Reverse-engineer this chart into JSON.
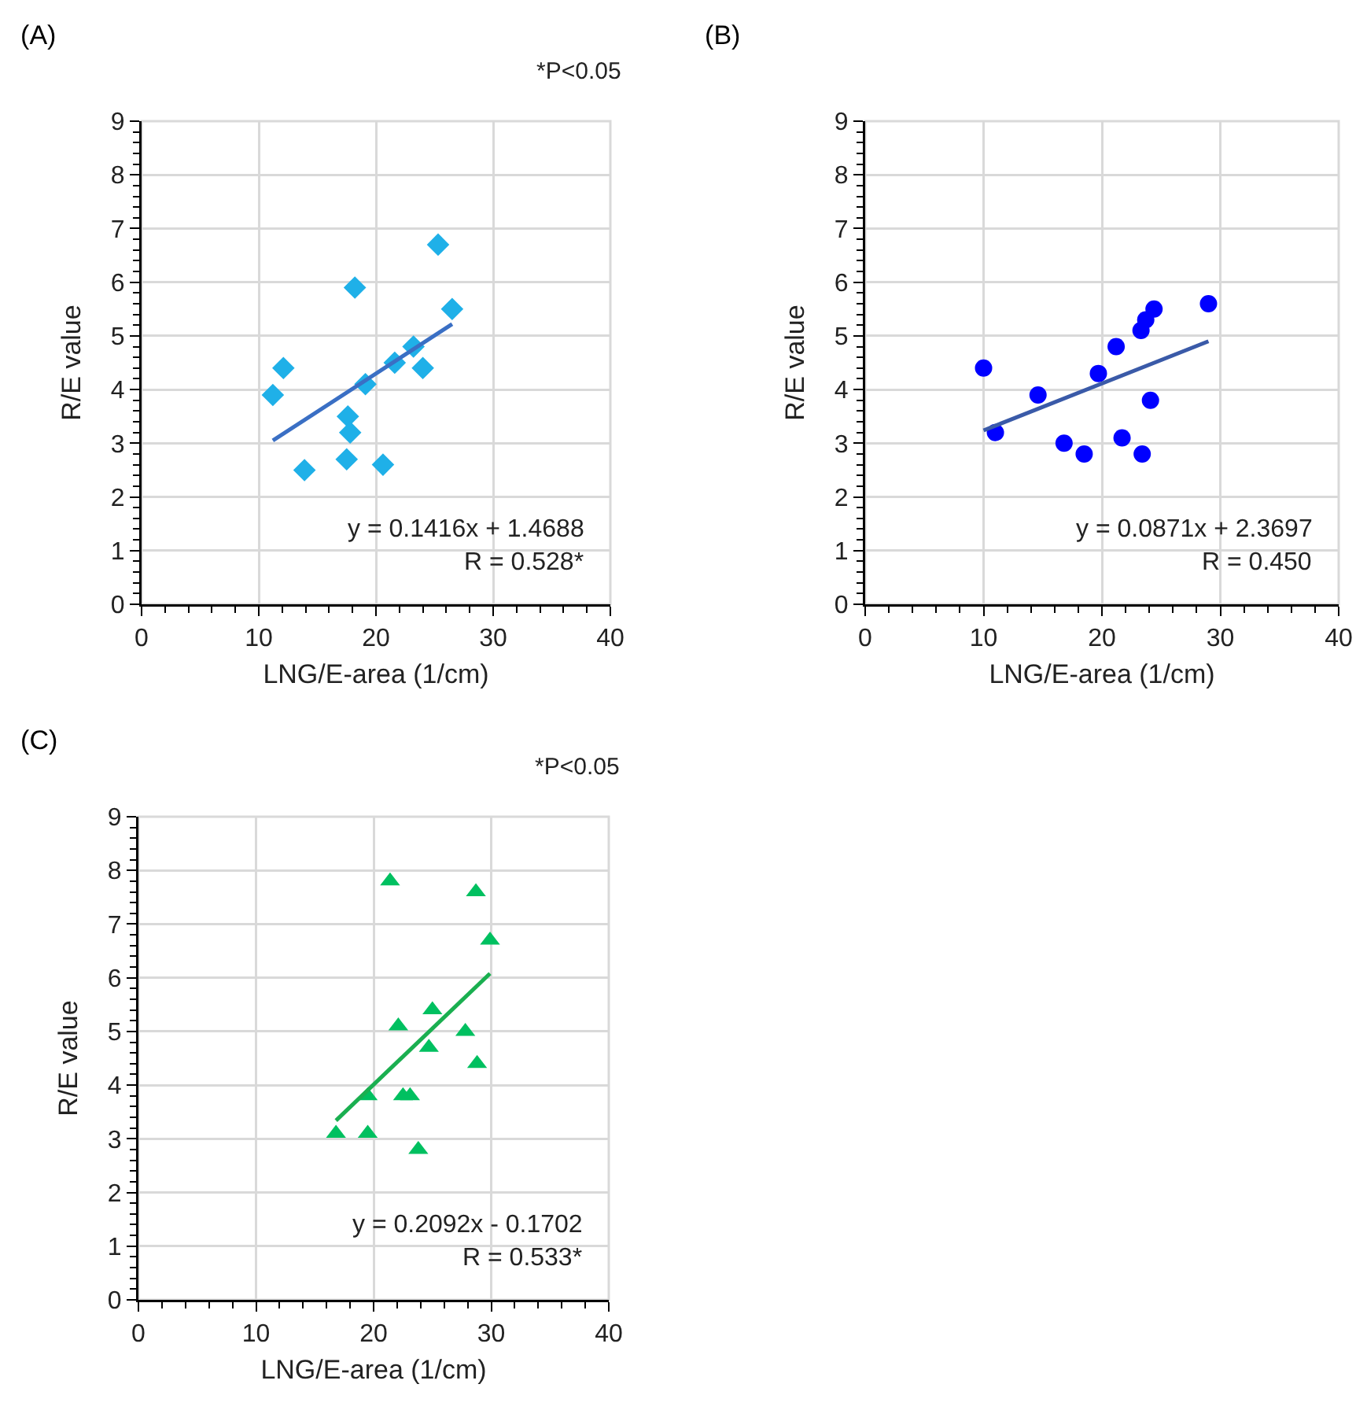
{
  "chart_data": [
    {
      "type": "scatter",
      "title": "(A)",
      "xlabel": "LNG/E-area (1/cm)",
      "ylabel": "R/E value",
      "grid": true,
      "legend": false,
      "xlim": [
        0,
        40
      ],
      "xticks": [
        0,
        10,
        20,
        30,
        40
      ],
      "ylim": [
        0,
        9
      ],
      "yticks": [
        0,
        1,
        2,
        3,
        4,
        5,
        6,
        7,
        8,
        9
      ],
      "annotations": [
        "*P<0.05",
        "y = 0.1416x + 1.4688",
        "R = 0.528*"
      ],
      "series": [
        {
          "marker": "diamond",
          "color": "#1fb0e8",
          "x": [
            11.2,
            12.1,
            13.9,
            17.6,
            17.8,
            17.5,
            18.2,
            19.1,
            20.6,
            21.6,
            23.2,
            24.0,
            25.3,
            26.5
          ],
          "values": [
            3.9,
            4.4,
            2.5,
            3.5,
            3.2,
            2.7,
            5.9,
            4.1,
            2.6,
            4.5,
            4.8,
            4.4,
            6.7,
            5.5
          ]
        },
        {
          "type": "line",
          "marker": "none",
          "color": "#3a6fc4",
          "x": [
            11.2,
            26.5
          ],
          "values": [
            3.05,
            5.22
          ]
        }
      ]
    },
    {
      "type": "scatter",
      "title": "(B)",
      "xlabel": "LNG/E-area (1/cm)",
      "ylabel": "R/E value",
      "grid": true,
      "legend": false,
      "xlim": [
        0,
        40
      ],
      "xticks": [
        0,
        10,
        20,
        30,
        40
      ],
      "ylim": [
        0,
        9
      ],
      "yticks": [
        0,
        1,
        2,
        3,
        4,
        5,
        6,
        7,
        8,
        9
      ],
      "annotations": [
        "y = 0.0871x + 2.3697",
        "R = 0.450"
      ],
      "series": [
        {
          "marker": "circle",
          "color": "#0000ff",
          "x": [
            10.0,
            11.0,
            14.6,
            16.8,
            18.5,
            19.7,
            21.2,
            21.7,
            23.3,
            23.7,
            24.4,
            23.4,
            24.1,
            29.0
          ],
          "values": [
            4.4,
            3.2,
            3.9,
            3.0,
            2.8,
            4.3,
            4.8,
            3.1,
            5.1,
            5.3,
            5.5,
            2.8,
            3.8,
            5.6
          ]
        },
        {
          "type": "line",
          "marker": "none",
          "color": "#3a5aa8",
          "x": [
            10.0,
            29.0
          ],
          "values": [
            3.24,
            4.9
          ]
        }
      ]
    },
    {
      "type": "scatter",
      "title": "(C)",
      "xlabel": "LNG/E-area (1/cm)",
      "ylabel": "R/E value",
      "grid": true,
      "legend": false,
      "xlim": [
        0,
        40
      ],
      "xticks": [
        0,
        10,
        20,
        30,
        40
      ],
      "ylim": [
        0,
        9
      ],
      "yticks": [
        0,
        1,
        2,
        3,
        4,
        5,
        6,
        7,
        8,
        9
      ],
      "annotations": [
        "*P<0.05",
        "y = 0.2092x - 0.1702",
        "R = 0.533*"
      ],
      "series": [
        {
          "marker": "triangle",
          "color": "#00c060",
          "x": [
            21.4,
            28.7,
            29.9,
            25.0,
            22.1,
            27.8,
            24.7,
            28.8,
            19.5,
            22.5,
            23.1,
            16.8,
            19.5,
            23.8
          ],
          "values": [
            7.8,
            7.6,
            6.7,
            5.4,
            5.1,
            5.0,
            4.7,
            4.4,
            3.8,
            3.8,
            3.8,
            3.1,
            3.1,
            2.8
          ]
        },
        {
          "type": "line",
          "marker": "none",
          "color": "#1aaf50",
          "x": [
            16.8,
            29.9
          ],
          "values": [
            3.34,
            6.08
          ]
        }
      ]
    }
  ]
}
